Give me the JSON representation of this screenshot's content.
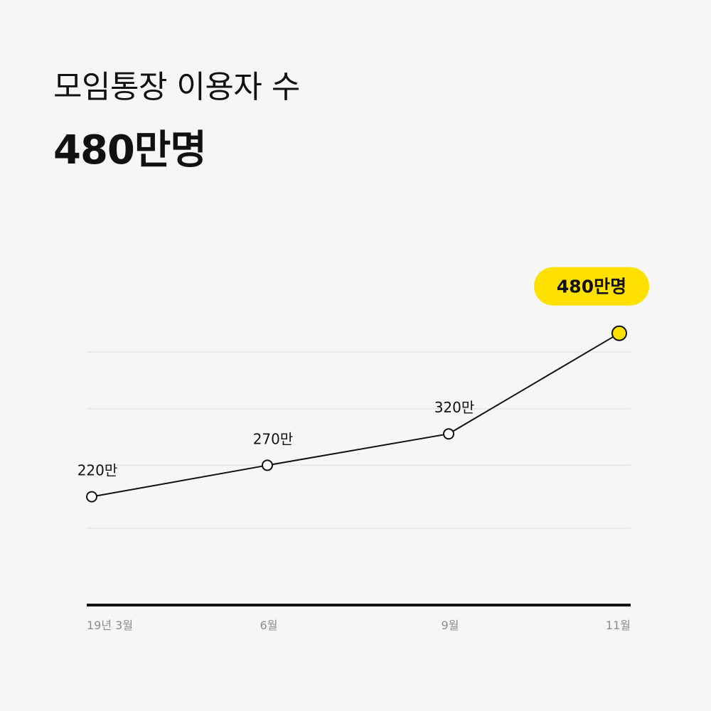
{
  "header": {
    "title": "모임통장 이용자 수",
    "headline": "480만명"
  },
  "chart_data": {
    "type": "line",
    "categories": [
      "19년 3월",
      "6월",
      "9월",
      "11월"
    ],
    "values": [
      220,
      270,
      320,
      480
    ],
    "data_labels": [
      "220만",
      "270만",
      "320만",
      "480만명"
    ],
    "ylim": [
      50,
      500
    ],
    "grid": true,
    "highlight_index": 3,
    "colors": {
      "line": "#111111",
      "highlight": "#ffe100",
      "grid": "#e6e6e6",
      "axis": "#111111",
      "point_fill": "#ffffff"
    }
  }
}
